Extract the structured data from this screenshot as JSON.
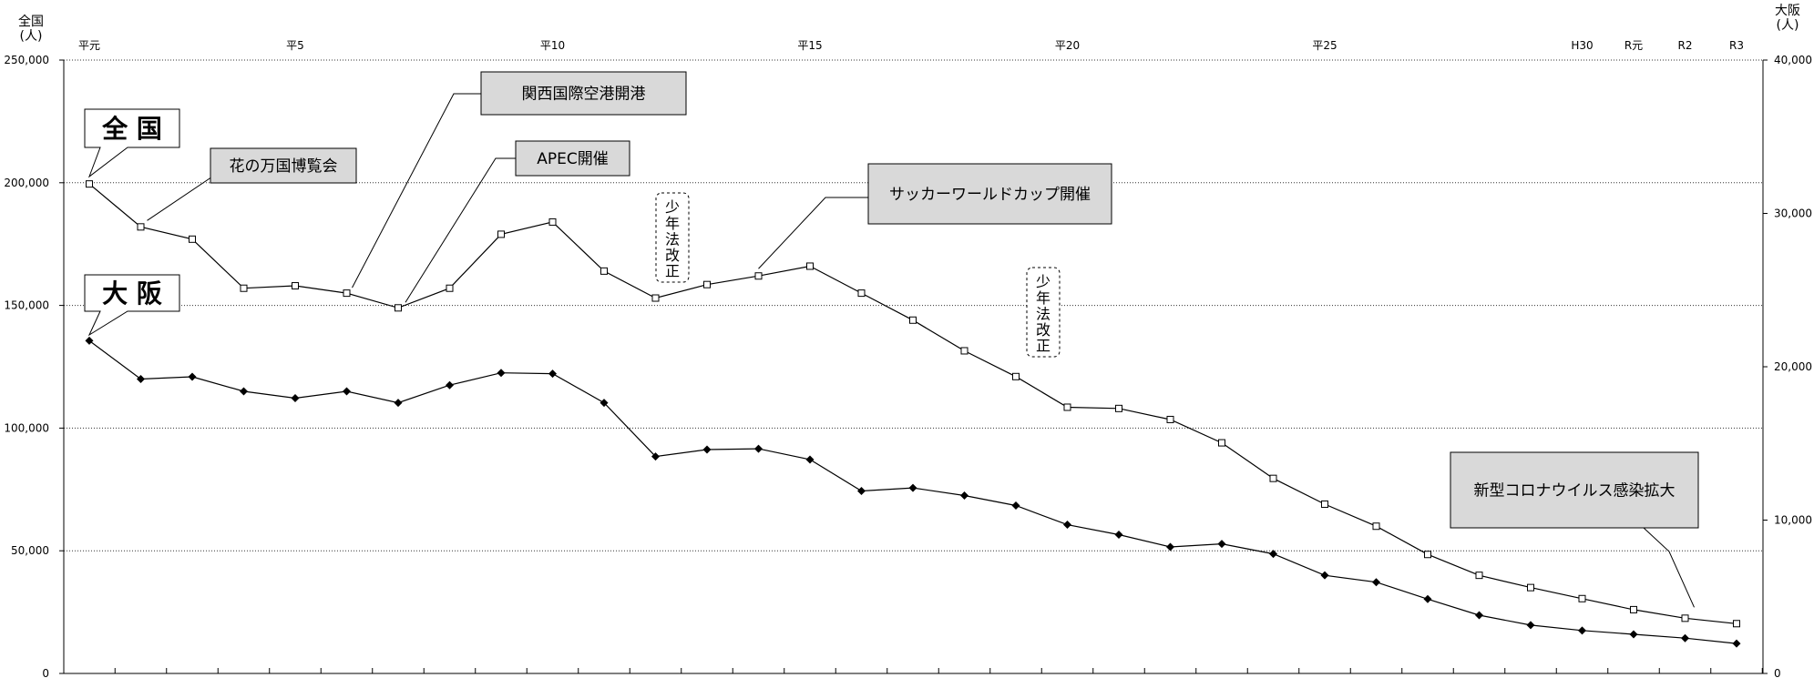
{
  "chart_data": {
    "type": "line",
    "left_axis": {
      "label_line1": "全国",
      "label_line2": "(人)",
      "ylim": [
        0,
        250000
      ],
      "ticks": [
        0,
        50000,
        100000,
        150000,
        200000,
        250000
      ],
      "tick_labels": [
        "0",
        "50,000",
        "100,000",
        "150,000",
        "200,000",
        "250,000"
      ]
    },
    "right_axis": {
      "label_line1": "大阪",
      "label_line2": "(人)",
      "ylim": [
        0,
        40000
      ],
      "ticks": [
        0,
        10000,
        20000,
        30000,
        40000
      ],
      "tick_labels": [
        "0",
        "10,000",
        "20,000",
        "30,000",
        "40,000"
      ]
    },
    "x_count": 33,
    "era_labels": [
      {
        "index": 0,
        "text": "平元"
      },
      {
        "index": 4,
        "text": "平5"
      },
      {
        "index": 9,
        "text": "平10"
      },
      {
        "index": 14,
        "text": "平15"
      },
      {
        "index": 19,
        "text": "平20"
      },
      {
        "index": 24,
        "text": "平25"
      },
      {
        "index": 29,
        "text": "H30"
      },
      {
        "index": 30,
        "text": "R元"
      },
      {
        "index": 31,
        "text": "R2"
      },
      {
        "index": 32,
        "text": "R3"
      }
    ],
    "grid": true,
    "series": [
      {
        "name": "全 国",
        "axis": "left",
        "marker": "open-square",
        "values": [
          199500,
          182000,
          177000,
          157000,
          158000,
          155000,
          149000,
          157000,
          179000,
          184000,
          164000,
          153000,
          158500,
          162000,
          166000,
          155000,
          144000,
          131500,
          121000,
          108500,
          108000,
          103500,
          94000,
          79500,
          69000,
          60000,
          48500,
          40000,
          35000,
          30500,
          26000,
          22500,
          20300
        ]
      },
      {
        "name": "大 阪",
        "axis": "right",
        "marker": "filled-diamond",
        "values": [
          21700,
          19200,
          19350,
          18400,
          17950,
          18400,
          17650,
          18800,
          19600,
          19550,
          17650,
          14150,
          14600,
          14650,
          13950,
          11900,
          12100,
          11600,
          10950,
          9700,
          9050,
          8250,
          8450,
          7800,
          6400,
          5950,
          4850,
          3800,
          3150,
          2800,
          2550,
          2300,
          1950
        ]
      }
    ],
    "annotations": [
      {
        "text": "花の万国博覧会",
        "index": 1
      },
      {
        "text": "関西国際空港開港",
        "index": 5
      },
      {
        "text": "APEC開催",
        "index": 6
      },
      {
        "text": "サッカーワールドカップ開催",
        "index": 13
      },
      {
        "text": "新型コロナウイルス感染拡大",
        "index": 31
      }
    ],
    "vertical_notes": [
      {
        "text": "少年法改正",
        "index": 11
      },
      {
        "text": "少年法改正",
        "index": 18
      }
    ]
  }
}
